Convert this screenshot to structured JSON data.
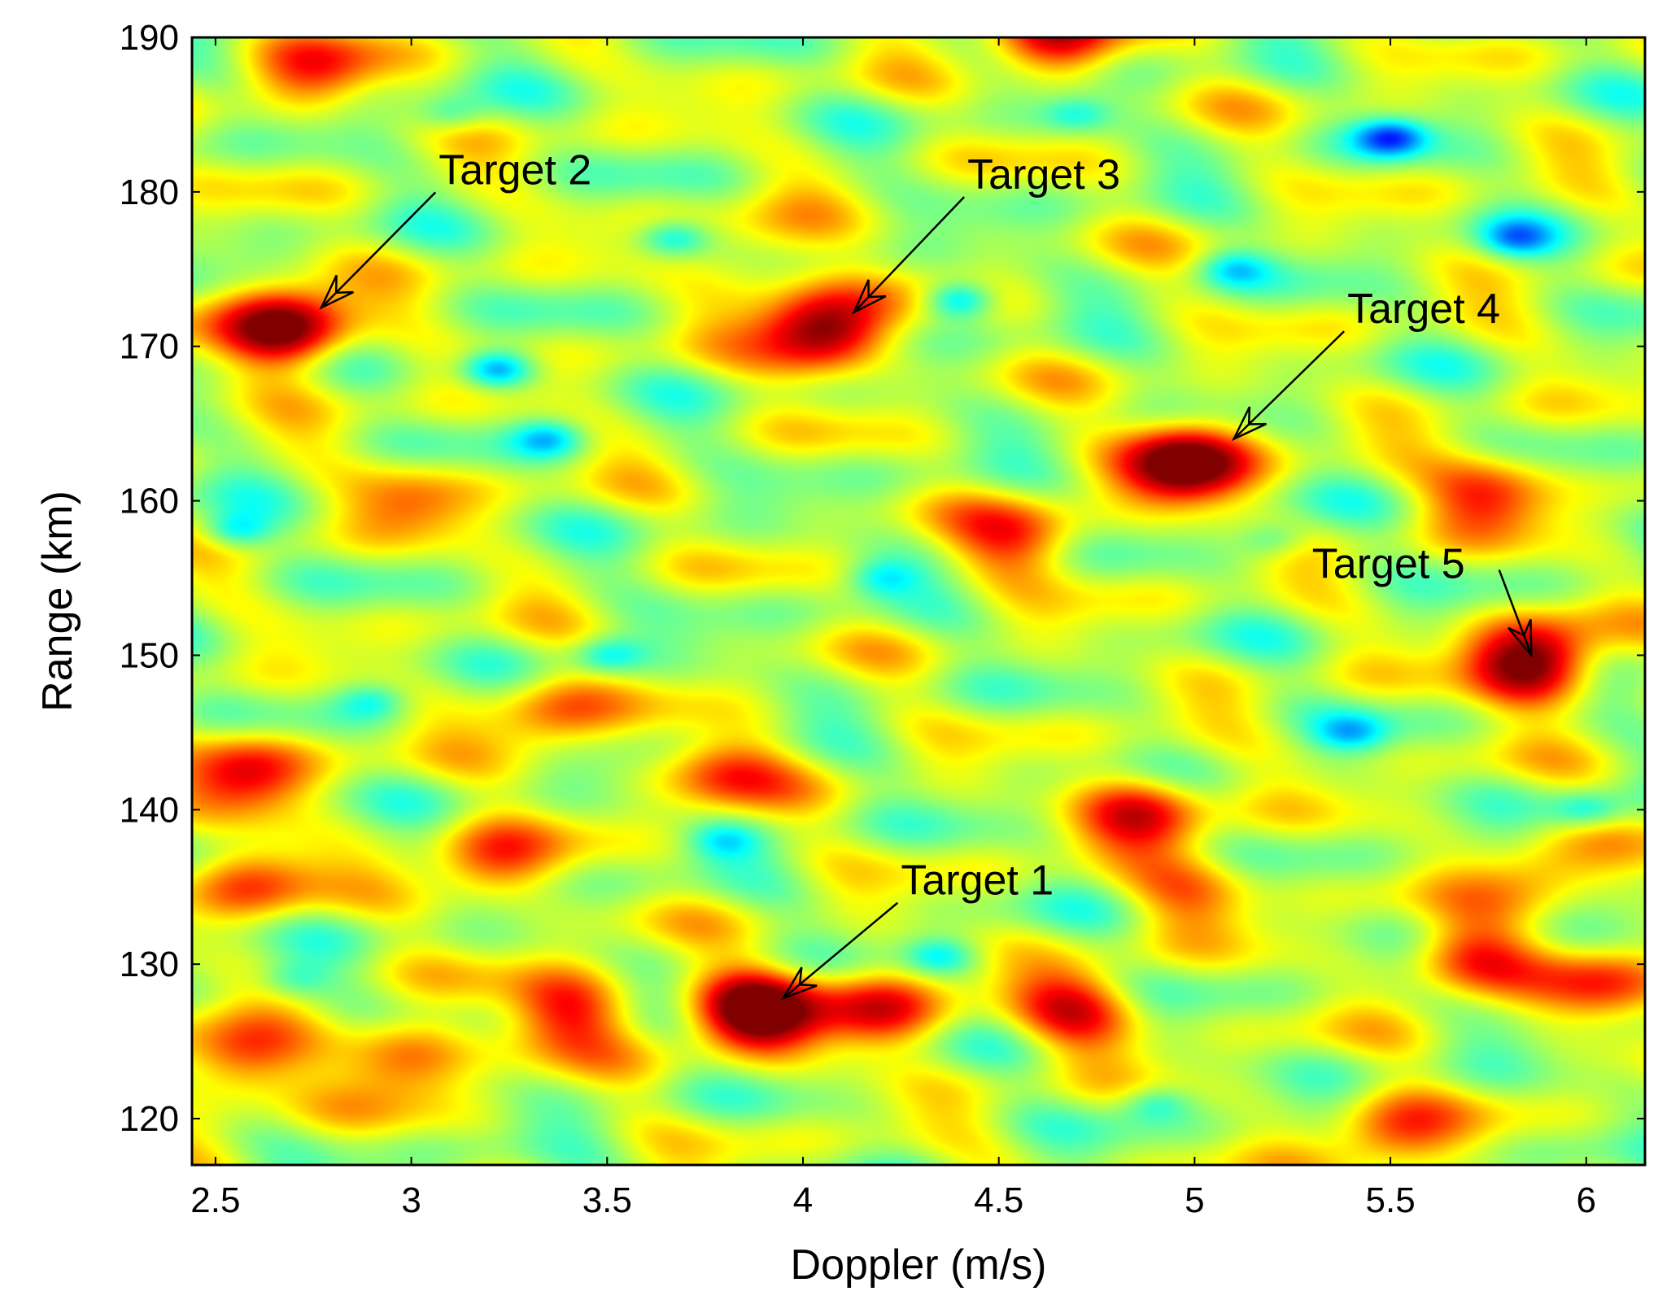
{
  "chart_data": {
    "type": "heatmap",
    "title": "",
    "xlabel": "Doppler (m/s)",
    "ylabel": "Range (km)",
    "xlim": [
      2.44,
      6.15
    ],
    "ylim": [
      117,
      190
    ],
    "x_ticks": [
      {
        "value": 2.5,
        "label": "2.5"
      },
      {
        "value": 3,
        "label": "3"
      },
      {
        "value": 3.5,
        "label": "3.5"
      },
      {
        "value": 4,
        "label": "4"
      },
      {
        "value": 4.5,
        "label": "4.5"
      },
      {
        "value": 5,
        "label": "5"
      },
      {
        "value": 5.5,
        "label": "5.5"
      },
      {
        "value": 6,
        "label": "6"
      }
    ],
    "y_ticks": [
      {
        "value": 120,
        "label": "120"
      },
      {
        "value": 130,
        "label": "130"
      },
      {
        "value": 140,
        "label": "140"
      },
      {
        "value": 150,
        "label": "150"
      },
      {
        "value": 160,
        "label": "160"
      },
      {
        "value": 170,
        "label": "170"
      },
      {
        "value": 180,
        "label": "180"
      },
      {
        "value": 190,
        "label": "190"
      }
    ],
    "colormap": "jet",
    "colormap_stops": [
      "#00008f",
      "#0000ff",
      "#00ffff",
      "#ffff00",
      "#ff0000",
      "#800000"
    ],
    "background_level": 0.55,
    "targets": [
      {
        "label": "Target 1",
        "doppler": 3.88,
        "range": 127,
        "label_doppler": 4.25,
        "label_range": 134.5,
        "arrow_tip_doppler": 3.95,
        "arrow_tip_range": 127.8
      },
      {
        "label": "Target 2",
        "doppler": 2.68,
        "range": 171.2,
        "label_doppler": 3.07,
        "label_range": 180.5,
        "arrow_tip_doppler": 2.77,
        "arrow_tip_range": 172.5
      },
      {
        "label": "Target 3",
        "doppler": 4.05,
        "range": 171,
        "label_doppler": 4.42,
        "label_range": 180.2,
        "arrow_tip_doppler": 4.13,
        "arrow_tip_range": 172.2
      },
      {
        "label": "Target 4",
        "doppler": 4.98,
        "range": 162.5,
        "label_doppler": 5.39,
        "label_range": 171.5,
        "arrow_tip_doppler": 5.1,
        "arrow_tip_range": 164
      },
      {
        "label": "Target 5",
        "doppler": 5.86,
        "range": 149.5,
        "label_doppler": 5.3,
        "label_range": 155,
        "arrow_tip_doppler": 5.86,
        "arrow_tip_range": 150
      }
    ],
    "peaks": [
      {
        "doppler": 3.88,
        "range": 127,
        "amp": 0.95
      },
      {
        "doppler": 2.68,
        "range": 171.2,
        "amp": 0.95
      },
      {
        "doppler": 4.05,
        "range": 171,
        "amp": 0.92
      },
      {
        "doppler": 4.98,
        "range": 162.5,
        "amp": 0.95
      },
      {
        "doppler": 5.86,
        "range": 149.5,
        "amp": 0.95
      },
      {
        "doppler": 4.2,
        "range": 127,
        "amp": 0.55
      },
      {
        "doppler": 4.7,
        "range": 127,
        "amp": 0.55
      },
      {
        "doppler": 3.4,
        "range": 127,
        "amp": 0.6
      },
      {
        "doppler": 2.55,
        "range": 123.5,
        "amp": 0.55
      },
      {
        "doppler": 2.98,
        "range": 124,
        "amp": 0.5
      },
      {
        "doppler": 2.6,
        "range": 135.5,
        "amp": 0.45
      },
      {
        "doppler": 3.2,
        "range": 136.5,
        "amp": 0.45
      },
      {
        "doppler": 2.58,
        "range": 142.5,
        "amp": 0.55
      },
      {
        "doppler": 3.8,
        "range": 142.5,
        "amp": 0.45
      },
      {
        "doppler": 4.87,
        "range": 140,
        "amp": 0.55
      },
      {
        "doppler": 5.7,
        "range": 130.5,
        "amp": 0.55
      },
      {
        "doppler": 6.05,
        "range": 128.5,
        "amp": 0.4
      },
      {
        "doppler": 5.75,
        "range": 160.5,
        "amp": 0.5
      },
      {
        "doppler": 4.55,
        "range": 157.5,
        "amp": 0.45
      },
      {
        "doppler": 2.75,
        "range": 188,
        "amp": 0.45
      },
      {
        "doppler": 4.65,
        "range": 190,
        "amp": 0.6
      },
      {
        "doppler": 3.35,
        "range": 146,
        "amp": 0.4
      },
      {
        "doppler": 5.5,
        "range": 119,
        "amp": 0.45
      },
      {
        "doppler": 5.0,
        "range": 135,
        "amp": 0.35
      },
      {
        "doppler": 5.9,
        "range": 136,
        "amp": 0.35
      },
      {
        "doppler": 3.0,
        "range": 160,
        "amp": 0.3
      },
      {
        "doppler": 3.9,
        "range": 176,
        "amp": 0.3
      }
    ],
    "troughs": [
      {
        "doppler": 5.5,
        "range": 183.5,
        "amp": 0.55
      },
      {
        "doppler": 3.22,
        "range": 168.5,
        "amp": 0.5
      },
      {
        "doppler": 4.4,
        "range": 173,
        "amp": 0.45
      },
      {
        "doppler": 3.67,
        "range": 177,
        "amp": 0.35
      },
      {
        "doppler": 2.55,
        "range": 158,
        "amp": 0.35
      },
      {
        "doppler": 3.35,
        "range": 164,
        "amp": 0.35
      },
      {
        "doppler": 5.82,
        "range": 177,
        "amp": 0.35
      },
      {
        "doppler": 4.35,
        "range": 130.5,
        "amp": 0.3
      },
      {
        "doppler": 3.5,
        "range": 150,
        "amp": 0.3
      },
      {
        "doppler": 5.4,
        "range": 145,
        "amp": 0.3
      },
      {
        "doppler": 4.2,
        "range": 155,
        "amp": 0.25
      },
      {
        "doppler": 6.0,
        "range": 140,
        "amp": 0.3
      },
      {
        "doppler": 3.8,
        "range": 138,
        "amp": 0.25
      },
      {
        "doppler": 2.9,
        "range": 147,
        "amp": 0.25
      },
      {
        "doppler": 5.1,
        "range": 175,
        "amp": 0.3
      },
      {
        "doppler": 4.7,
        "range": 185,
        "amp": 0.25
      },
      {
        "doppler": 3.1,
        "range": 185,
        "amp": 0.25
      },
      {
        "doppler": 5.2,
        "range": 157.5,
        "amp": 0.25
      },
      {
        "doppler": 2.7,
        "range": 129,
        "amp": 0.2
      },
      {
        "doppler": 4.9,
        "range": 121,
        "amp": 0.25
      }
    ]
  }
}
